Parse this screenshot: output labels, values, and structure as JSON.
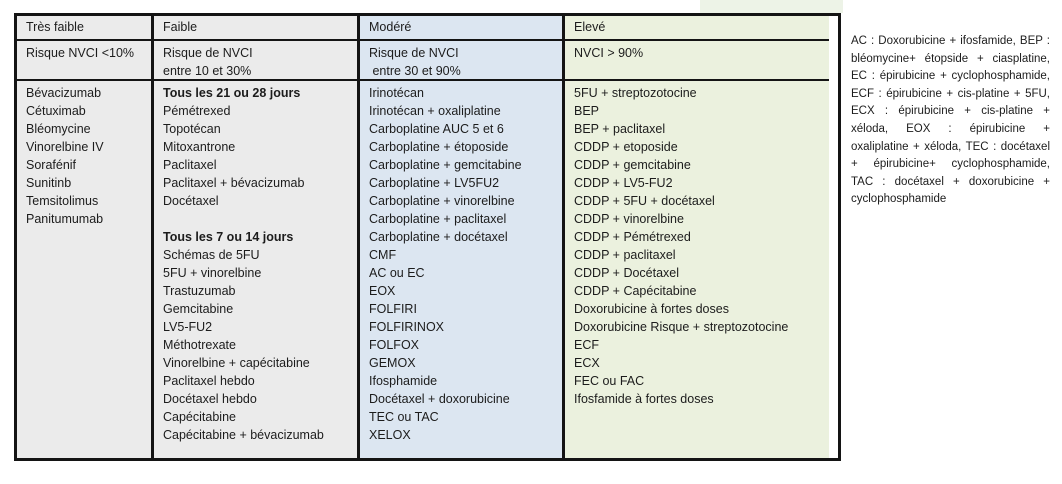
{
  "colors": {
    "column_gray": "#ebebeb",
    "column_blue": "#dce6f1",
    "column_green": "#ebf1de",
    "border": "#141414"
  },
  "table": {
    "columns": [
      {
        "id": "tres-faible",
        "header": "Très faible",
        "risk_lines": [
          "Risque NVCI <10%"
        ],
        "bg": "#ebebeb",
        "items": [
          "Bévacizumab",
          "Cétuximab",
          "Bléomycine",
          "Vinorelbine IV",
          "Sorafénif",
          "Sunitinb",
          "Temsitolimus",
          "Panitumumab"
        ]
      },
      {
        "id": "faible",
        "header": "Faible",
        "risk_lines": [
          "Risque de NVCI",
          "entre 10 et 30%"
        ],
        "bg": "#ebebeb",
        "items": [
          {
            "text": "Tous les 21 ou 28 jours",
            "bold": true
          },
          "Pémétrexed",
          "Topotécan",
          "Mitoxantrone",
          "Paclitaxel",
          "Paclitaxel + bévacizumab",
          "Docétaxel",
          "",
          {
            "text": "Tous les 7 ou 14 jours",
            "bold": true
          },
          "Schémas de 5FU",
          "5FU + vinorelbine",
          "Trastuzumab",
          "Gemcitabine",
          "LV5-FU2",
          "Méthotrexate",
          "Vinorelbine + capécitabine",
          "Paclitaxel hebdo",
          "Docétaxel hebdo",
          "Capécitabine",
          "Capécitabine + bévacizumab"
        ]
      },
      {
        "id": "modere",
        "header": "Modéré",
        "risk_lines": [
          "Risque de NVCI",
          " entre 30 et 90%"
        ],
        "bg": "#dce6f1",
        "items": [
          "Irinotécan",
          "Irinotécan + oxaliplatine",
          "Carboplatine AUC 5 et 6",
          "Carboplatine + étoposide",
          "Carboplatine + gemcitabine",
          "Carboplatine + LV5FU2",
          "Carboplatine + vinorelbine",
          "Carboplatine + paclitaxel",
          "Carboplatine + docétaxel",
          "CMF",
          "AC ou EC",
          "EOX",
          "FOLFIRI",
          "FOLFIRINOX",
          "FOLFOX",
          "GEMOX",
          "Ifosphamide",
          "Docétaxel + doxorubicine",
          "TEC ou TAC",
          "XELOX"
        ]
      },
      {
        "id": "eleve",
        "header": "Elevé",
        "risk_lines": [
          "NVCI > 90%"
        ],
        "bg": "#ebf1de",
        "items": [
          "5FU + streptozotocine",
          "BEP",
          "BEP + paclitaxel",
          "CDDP + etoposide",
          "CDDP + gemcitabine",
          "CDDP + LV5-FU2",
          "CDDP + 5FU + docétaxel",
          "CDDP + vinorelbine",
          "CDDP + Pémétrexed",
          "CDDP + paclitaxel",
          "CDDP + Docétaxel",
          "CDDP + Capécitabine",
          "Doxorubicine à fortes doses",
          "Doxorubicine Risque + streptozotocine",
          "ECF",
          "ECX",
          "FEC ou FAC",
          "Ifosfamide à fortes doses"
        ]
      }
    ]
  },
  "legend": {
    "text": "AC :  Doxorubicine  +  ifosfamide, BEP :  bléomycine+  étopside  + ciasplatine,  EC :  épirubicine  + cyclophosphamide,  ECF : épirubicine  +  cis-platine  +  5FU, ECX :  épirubicine  +  cis-platine  + xéloda,  EOX :  épirubicine  + oxaliplatine  +  xéloda,  TEC : docétaxel  +  épirubicine+ cyclophosphamide, TAC : docétaxel + doxorubicine + cyclophosphamide"
  }
}
